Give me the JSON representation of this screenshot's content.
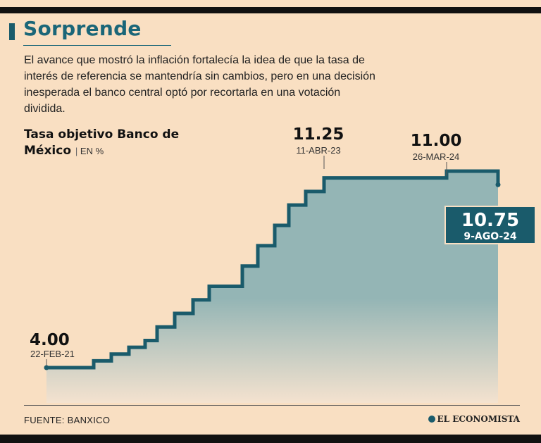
{
  "headline": "Sorprende",
  "intro": "El avance que mostró la inflación fortalecía la idea de que la tasa de interés de referencia se mantendría sin cambios, pero en una decisión inesperada el banco central optó por recortarla en una votación dividida.",
  "chart_title": "Tasa objetivo Banco de México",
  "chart_unit": "EN %",
  "source": "FUENTE: BANXICO",
  "brand": "EL ECONOMISTA",
  "colors": {
    "line": "#1a5b6b",
    "accent": "#1a6678",
    "area_top": "#94b5b5",
    "area_bottom": "#f4e2cf"
  },
  "chart_data": {
    "type": "area",
    "step": true,
    "title": "Tasa objetivo Banco de México",
    "ylabel": "EN %",
    "x": [
      "22-FEB-21",
      "2021-06",
      "2021-08",
      "2021-09",
      "2021-11",
      "2021-12",
      "2022-02",
      "2022-03",
      "2022-05",
      "2022-06",
      "2022-08",
      "2022-09",
      "2022-11",
      "2022-12",
      "2023-02",
      "2023-03",
      "11-ABR-23",
      "26-MAR-24",
      "9-AGO-24"
    ],
    "values": [
      4.0,
      4.25,
      4.5,
      4.75,
      5.0,
      5.5,
      6.0,
      6.5,
      7.0,
      7.75,
      8.5,
      9.25,
      10.0,
      10.5,
      11.0,
      11.0,
      11.25,
      11.0,
      10.75
    ],
    "annotations": [
      {
        "value": "4.00",
        "date": "22-FEB-21"
      },
      {
        "value": "11.25",
        "date": "11-ABR-23"
      },
      {
        "value": "11.00",
        "date": "26-MAR-24"
      },
      {
        "value": "10.75",
        "date": "9-AGO-24",
        "highlight": true
      }
    ]
  }
}
